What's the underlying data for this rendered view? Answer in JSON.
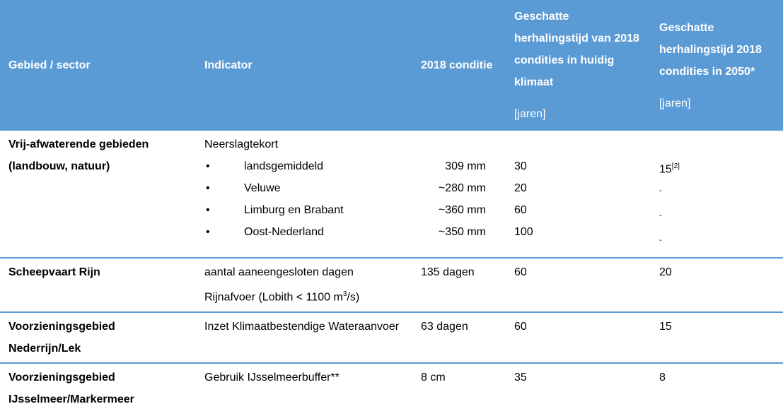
{
  "header": {
    "columns": [
      "Gebied / sector",
      "Indicator",
      "2018 conditie",
      "Geschatte herhalingstijd van 2018 condities in huidig klimaat",
      "Geschatte herhalingstijd 2018 condities in 2050*"
    ],
    "units": [
      "[jaren]",
      "[jaren]"
    ]
  },
  "rows": [
    {
      "sector": "Vrij-afwaterende gebieden (landbouw, natuur)",
      "indicator": "Neerslagtekort",
      "items": [
        {
          "name": "landsgemiddeld",
          "condition": "309 mm",
          "current": 30,
          "future": "15",
          "future_note": "[2]"
        },
        {
          "name": "Veluwe",
          "condition": "~280 mm",
          "current": 20,
          "future": "-"
        },
        {
          "name": "Limburg en Brabant",
          "condition": "~360 mm",
          "current": 60,
          "future": "-"
        },
        {
          "name": "Oost-Nederland",
          "condition": "~350 mm",
          "current": 100,
          "future": "-"
        }
      ]
    },
    {
      "sector": "Scheepvaart Rijn",
      "indicator": "aantal aaneengesloten dagen Rijnafvoer (Lobith < 1100 m",
      "indicator_sup": "3",
      "indicator_end": "/s)",
      "condition": "135 dagen",
      "current": 60,
      "future": 20
    },
    {
      "sector": "Voorzieningsgebied Nederrijn/Lek",
      "indicator": "Inzet Klimaatbestendige Wateraanvoer",
      "condition": "63 dagen",
      "current": 60,
      "future": 15
    },
    {
      "sector": "Voorzieningsgebied IJsselmeer/Markermeer",
      "indicator": "Gebruik IJsselmeerbuffer**",
      "condition": "8 cm",
      "current": 35,
      "future": 8
    }
  ]
}
